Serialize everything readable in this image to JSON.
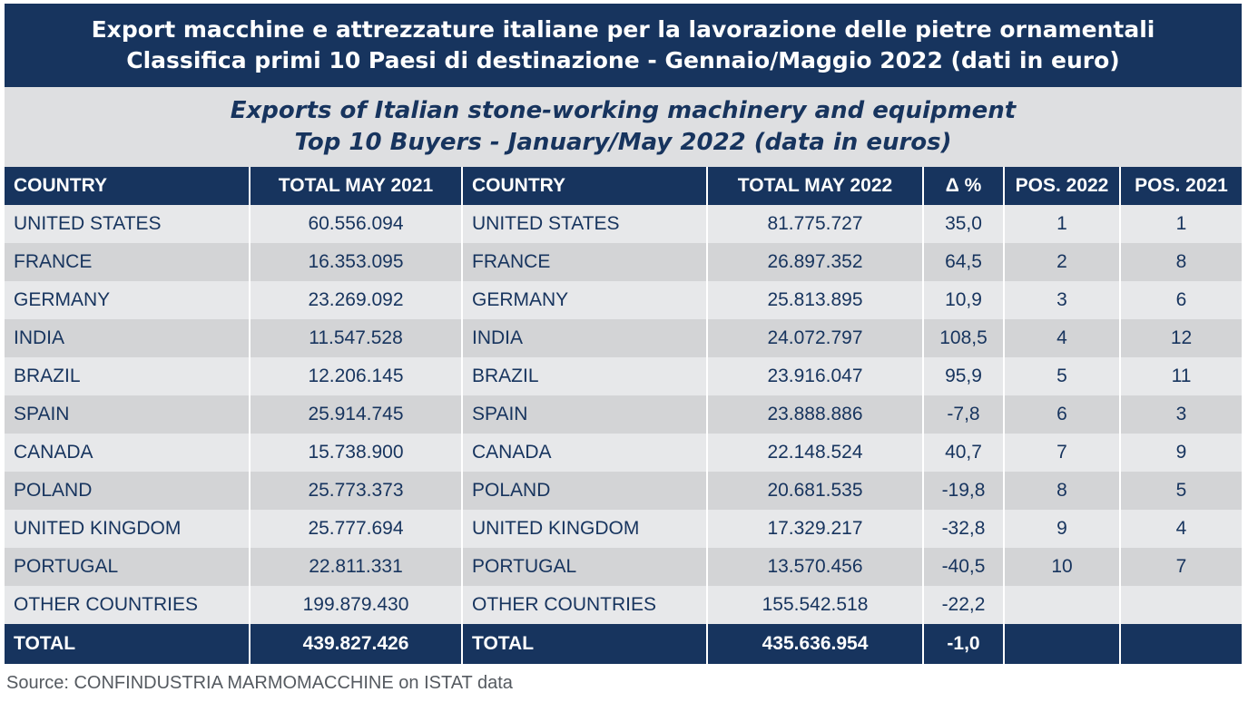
{
  "title_it": {
    "line1": "Export macchine e attrezzature italiane per la lavorazione delle pietre ornamentali",
    "line2": "Classifica primi 10 Paesi di destinazione - Gennaio/Maggio 2022 (dati in euro)"
  },
  "title_en": {
    "line1": "Exports of Italian stone-working machinery and equipment",
    "line2": "Top 10 Buyers - January/May 2022 (data in euros)"
  },
  "headers": {
    "country_2021": "COUNTRY",
    "total_2021": "TOTAL MAY 2021",
    "country_2022": "COUNTRY",
    "total_2022": "TOTAL MAY 2022",
    "delta": "Δ %",
    "pos_2022": "POS. 2022",
    "pos_2021": "POS. 2021"
  },
  "rows": [
    {
      "country_2021": "UNITED STATES",
      "total_2021": "60.556.094",
      "country_2022": "UNITED STATES",
      "total_2022": "81.775.727",
      "delta": "35,0",
      "pos_2022": "1",
      "pos_2021": "1"
    },
    {
      "country_2021": "FRANCE",
      "total_2021": "16.353.095",
      "country_2022": "FRANCE",
      "total_2022": "26.897.352",
      "delta": "64,5",
      "pos_2022": "2",
      "pos_2021": "8"
    },
    {
      "country_2021": "GERMANY",
      "total_2021": "23.269.092",
      "country_2022": "GERMANY",
      "total_2022": "25.813.895",
      "delta": "10,9",
      "pos_2022": "3",
      "pos_2021": "6"
    },
    {
      "country_2021": "INDIA",
      "total_2021": "11.547.528",
      "country_2022": "INDIA",
      "total_2022": "24.072.797",
      "delta": "108,5",
      "pos_2022": "4",
      "pos_2021": "12"
    },
    {
      "country_2021": "BRAZIL",
      "total_2021": "12.206.145",
      "country_2022": "BRAZIL",
      "total_2022": "23.916.047",
      "delta": "95,9",
      "pos_2022": "5",
      "pos_2021": "11"
    },
    {
      "country_2021": "SPAIN",
      "total_2021": "25.914.745",
      "country_2022": "SPAIN",
      "total_2022": "23.888.886",
      "delta": "-7,8",
      "pos_2022": "6",
      "pos_2021": "3"
    },
    {
      "country_2021": "CANADA",
      "total_2021": "15.738.900",
      "country_2022": "CANADA",
      "total_2022": "22.148.524",
      "delta": "40,7",
      "pos_2022": "7",
      "pos_2021": "9"
    },
    {
      "country_2021": "POLAND",
      "total_2021": "25.773.373",
      "country_2022": "POLAND",
      "total_2022": "20.681.535",
      "delta": "-19,8",
      "pos_2022": "8",
      "pos_2021": "5"
    },
    {
      "country_2021": "UNITED KINGDOM",
      "total_2021": "25.777.694",
      "country_2022": "UNITED KINGDOM",
      "total_2022": "17.329.217",
      "delta": "-32,8",
      "pos_2022": "9",
      "pos_2021": "4"
    },
    {
      "country_2021": "PORTUGAL",
      "total_2021": "22.811.331",
      "country_2022": "PORTUGAL",
      "total_2022": "13.570.456",
      "delta": "-40,5",
      "pos_2022": "10",
      "pos_2021": "7"
    },
    {
      "country_2021": "OTHER COUNTRIES",
      "total_2021": "199.879.430",
      "country_2022": "OTHER COUNTRIES",
      "total_2022": "155.542.518",
      "delta": "-22,2",
      "pos_2022": "",
      "pos_2021": ""
    }
  ],
  "total": {
    "country_2021": "TOTAL",
    "total_2021": "439.827.426",
    "country_2022": "TOTAL",
    "total_2022": "435.636.954",
    "delta": "-1,0",
    "pos_2022": "",
    "pos_2021": ""
  },
  "source": "Source: CONFINDUSTRIA MARMOMACCHINE on ISTAT data",
  "colors": {
    "navy": "#17345e",
    "row_light": "#e7e8ea",
    "row_dark": "#d3d4d6"
  }
}
